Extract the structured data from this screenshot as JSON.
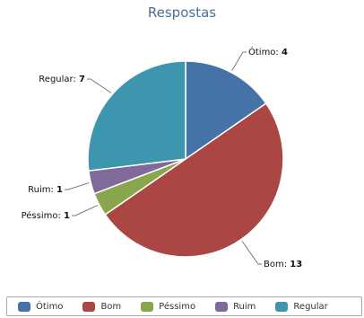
{
  "chart_data": {
    "type": "pie",
    "title": "Respostas",
    "slices": [
      {
        "label": "Ótimo",
        "value": 4,
        "color": "#4572a7"
      },
      {
        "label": "Bom",
        "value": 13,
        "color": "#aa4643"
      },
      {
        "label": "Péssimo",
        "value": 1,
        "color": "#89a54e"
      },
      {
        "label": "Ruim",
        "value": 1,
        "color": "#80699b"
      },
      {
        "label": "Regular",
        "value": 7,
        "color": "#3d96ae"
      }
    ],
    "legend_position": "bottom",
    "data_labels": true
  }
}
